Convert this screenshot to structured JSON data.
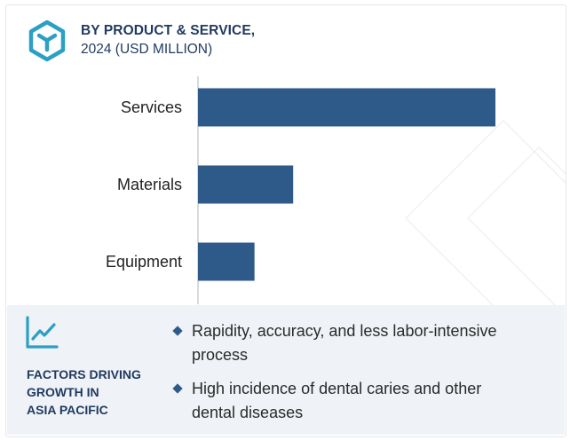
{
  "header": {
    "title": "BY PRODUCT & SERVICE,",
    "subtitle": "2024 (USD MILLION)",
    "icon": "cube-icon"
  },
  "chart_data": {
    "type": "bar",
    "orientation": "horizontal",
    "categories": [
      "Services",
      "Materials",
      "Equipment"
    ],
    "values": [
      100,
      32,
      19
    ],
    "bar_color": "#2e5a8a",
    "xlabel": "",
    "ylabel": "",
    "xlim": [
      0,
      100
    ],
    "grid": false,
    "legend": "none"
  },
  "factors": {
    "icon": "trend-line-icon",
    "title_lines": [
      "FACTORS DRIVING",
      "GROWTH IN",
      "ASIA PACIFIC"
    ],
    "bullets": [
      {
        "lines": [
          "Rapidity, accuracy, and less labor-intensive",
          "process"
        ]
      },
      {
        "lines": [
          "High incidence of dental caries and other",
          "dental diseases"
        ]
      }
    ]
  },
  "colors": {
    "accent": "#2e5a8a",
    "heading": "#1f3a5f",
    "icon_teal": "#2b9fc4",
    "panel_bg": "#eff2f6"
  }
}
